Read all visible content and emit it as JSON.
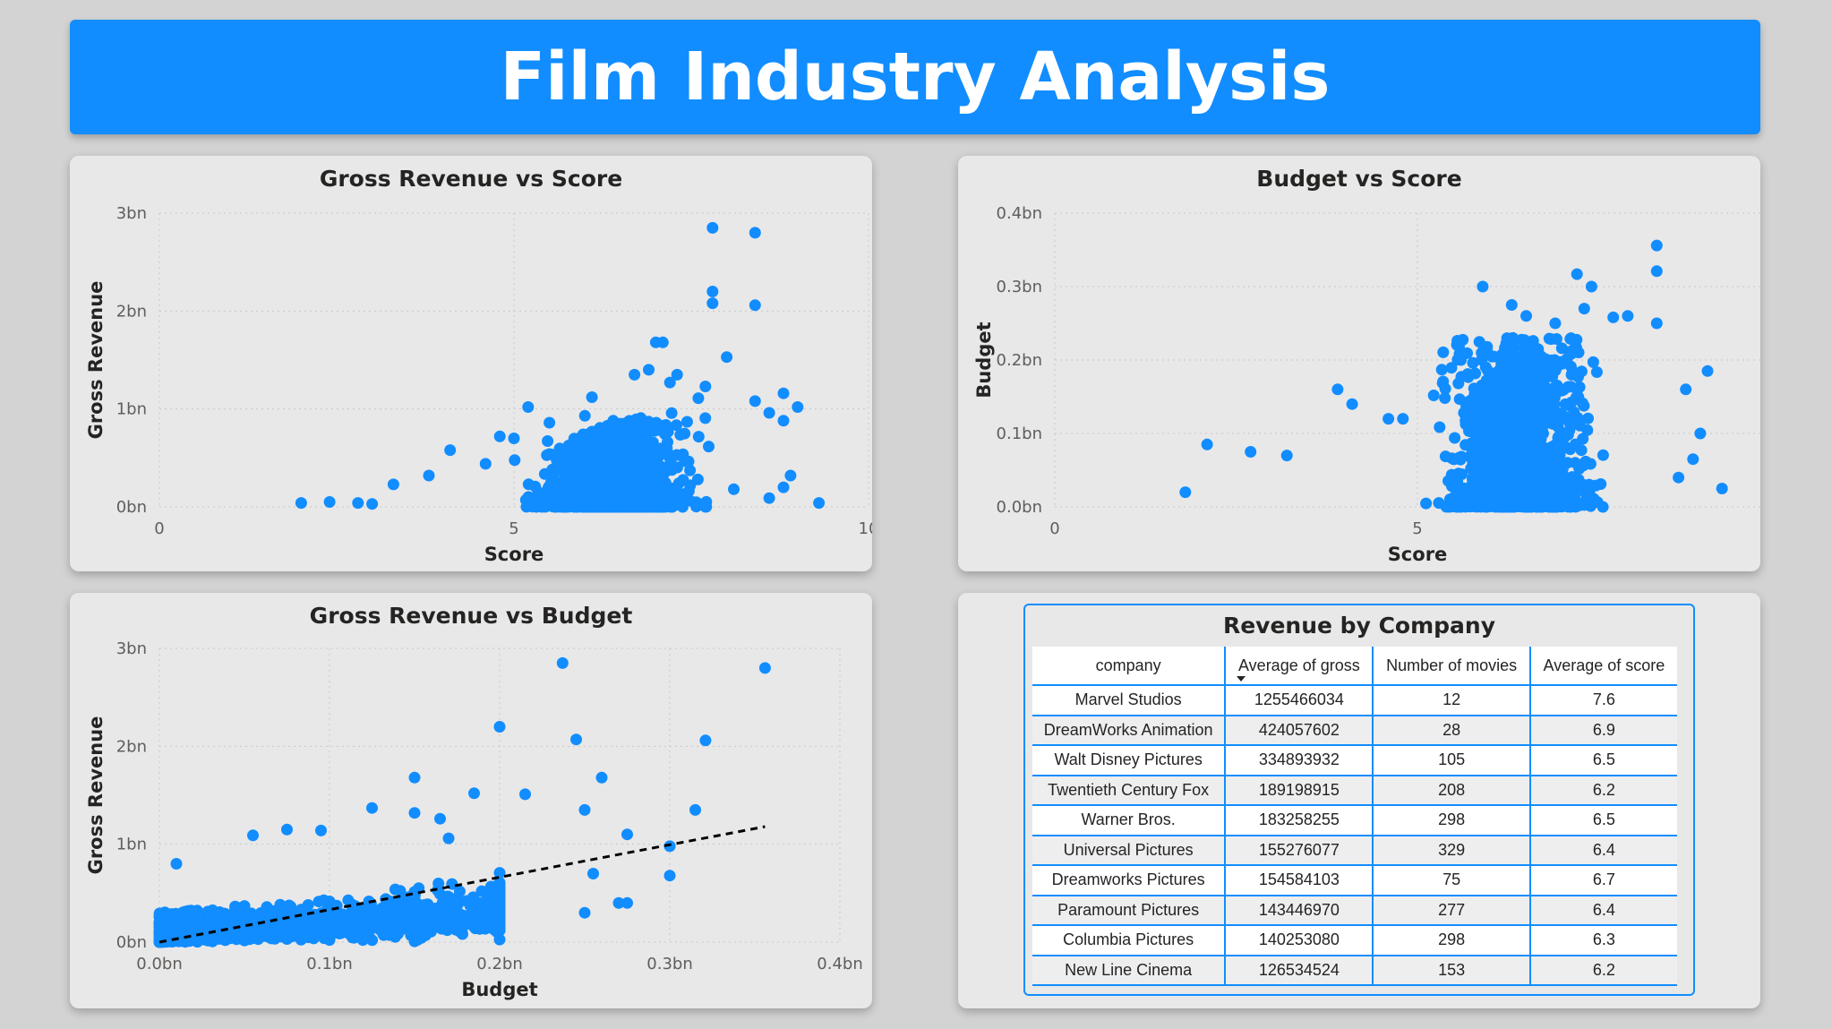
{
  "header": {
    "title": "Film Industry Analysis"
  },
  "colors": {
    "accent": "#118dff",
    "point": "#118dff",
    "trend": "#000000"
  },
  "chart_data": [
    {
      "id": "gross-vs-score",
      "type": "scatter",
      "title": "Gross Revenue vs Score",
      "xlabel": "Score",
      "ylabel": "Gross Revenue",
      "xlim": [
        0,
        10
      ],
      "ylim": [
        0,
        3000000000
      ],
      "x_ticks": [
        {
          "v": 0,
          "label": "0"
        },
        {
          "v": 5,
          "label": "5"
        },
        {
          "v": 10,
          "label": "10"
        }
      ],
      "y_ticks": [
        {
          "v": 0,
          "label": "0bn"
        },
        {
          "v": 1000000000,
          "label": "1bn"
        },
        {
          "v": 2000000000,
          "label": "2bn"
        },
        {
          "v": 3000000000,
          "label": "3bn"
        }
      ],
      "grid": true,
      "points": [
        [
          7.8,
          2850000000
        ],
        [
          8.4,
          2800000000
        ],
        [
          7.8,
          2200000000
        ],
        [
          7.8,
          2080000000
        ],
        [
          8.4,
          2060000000
        ],
        [
          7.0,
          1680000000
        ],
        [
          7.1,
          1680000000
        ],
        [
          8.0,
          1530000000
        ],
        [
          6.7,
          1350000000
        ],
        [
          7.3,
          1350000000
        ],
        [
          8.8,
          1160000000
        ],
        [
          9.0,
          1020000000
        ],
        [
          6.1,
          1120000000
        ],
        [
          7.7,
          1230000000
        ],
        [
          8.4,
          1080000000
        ],
        [
          7.6,
          1110000000
        ],
        [
          7.2,
          1270000000
        ],
        [
          6.9,
          1400000000
        ],
        [
          6.0,
          930000000
        ],
        [
          6.4,
          880000000
        ],
        [
          5.2,
          1020000000
        ],
        [
          5.5,
          860000000
        ],
        [
          8.8,
          880000000
        ],
        [
          8.6,
          960000000
        ],
        [
          4.1,
          580000000
        ],
        [
          4.8,
          720000000
        ],
        [
          5.0,
          700000000
        ],
        [
          5.5,
          540000000
        ],
        [
          4.6,
          440000000
        ],
        [
          3.3,
          230000000
        ],
        [
          3.8,
          320000000
        ],
        [
          8.9,
          320000000
        ],
        [
          9.3,
          40000000
        ],
        [
          8.6,
          90000000
        ],
        [
          2.0,
          40000000
        ],
        [
          2.4,
          50000000
        ],
        [
          2.8,
          40000000
        ],
        [
          3.0,
          30000000
        ],
        [
          8.1,
          180000000
        ],
        [
          8.8,
          200000000
        ]
      ],
      "cloud": true
    },
    {
      "id": "budget-vs-score",
      "type": "scatter",
      "title": "Budget vs Score",
      "xlabel": "Score",
      "ylabel": "Budget",
      "xlim": [
        0,
        10
      ],
      "ylim": [
        0,
        400000000
      ],
      "x_ticks": [
        {
          "v": 0,
          "label": "0"
        },
        {
          "v": 5,
          "label": "5"
        },
        {
          "v": 10,
          "label": "10"
        }
      ],
      "y_ticks": [
        {
          "v": 0,
          "label": "0.0bn"
        },
        {
          "v": 100000000,
          "label": "0.1bn"
        },
        {
          "v": 200000000,
          "label": "0.2bn"
        },
        {
          "v": 300000000,
          "label": "0.3bn"
        },
        {
          "v": 400000000,
          "label": "0.4bn"
        }
      ],
      "grid": true,
      "points": [
        [
          8.3,
          356000000
        ],
        [
          8.3,
          321000000
        ],
        [
          7.2,
          317000000
        ],
        [
          5.9,
          300000000
        ],
        [
          7.4,
          300000000
        ],
        [
          6.3,
          275000000
        ],
        [
          7.3,
          270000000
        ],
        [
          7.9,
          260000000
        ],
        [
          7.7,
          258000000
        ],
        [
          8.3,
          250000000
        ],
        [
          6.9,
          250000000
        ],
        [
          5.6,
          200000000
        ],
        [
          3.9,
          160000000
        ],
        [
          4.1,
          140000000
        ],
        [
          4.8,
          120000000
        ],
        [
          2.7,
          75000000
        ],
        [
          2.1,
          85000000
        ],
        [
          3.2,
          70000000
        ],
        [
          9.0,
          185000000
        ],
        [
          8.7,
          160000000
        ],
        [
          8.9,
          100000000
        ],
        [
          9.2,
          25000000
        ],
        [
          1.8,
          20000000
        ],
        [
          8.6,
          40000000
        ],
        [
          8.8,
          65000000
        ],
        [
          5.8,
          150000000
        ],
        [
          6.5,
          260000000
        ],
        [
          4.6,
          120000000
        ]
      ],
      "cloud": true
    },
    {
      "id": "gross-vs-budget",
      "type": "scatter",
      "title": "Gross Revenue vs Budget",
      "xlabel": "Budget",
      "ylabel": "Gross Revenue",
      "xlim": [
        0,
        400000000
      ],
      "ylim": [
        0,
        3000000000
      ],
      "x_ticks": [
        {
          "v": 0,
          "label": "0.0bn"
        },
        {
          "v": 100000000,
          "label": "0.1bn"
        },
        {
          "v": 200000000,
          "label": "0.2bn"
        },
        {
          "v": 300000000,
          "label": "0.3bn"
        },
        {
          "v": 400000000,
          "label": "0.4bn"
        }
      ],
      "y_ticks": [
        {
          "v": 0,
          "label": "0bn"
        },
        {
          "v": 1000000000,
          "label": "1bn"
        },
        {
          "v": 2000000000,
          "label": "2bn"
        },
        {
          "v": 3000000000,
          "label": "3bn"
        }
      ],
      "grid": true,
      "trend": [
        [
          0,
          0
        ],
        [
          356000000,
          1180000000
        ]
      ],
      "points": [
        [
          237000000,
          2850000000
        ],
        [
          356000000,
          2800000000
        ],
        [
          200000000,
          2200000000
        ],
        [
          245000000,
          2070000000
        ],
        [
          321000000,
          2060000000
        ],
        [
          150000000,
          1680000000
        ],
        [
          260000000,
          1680000000
        ],
        [
          150000000,
          1320000000
        ],
        [
          215000000,
          1510000000
        ],
        [
          250000000,
          1350000000
        ],
        [
          315000000,
          1350000000
        ],
        [
          185000000,
          1520000000
        ],
        [
          125000000,
          1370000000
        ],
        [
          300000000,
          980000000
        ],
        [
          275000000,
          400000000
        ],
        [
          300000000,
          680000000
        ],
        [
          255000000,
          700000000
        ],
        [
          270000000,
          400000000
        ],
        [
          250000000,
          300000000
        ],
        [
          275000000,
          1100000000
        ],
        [
          10000000,
          800000000
        ],
        [
          55000000,
          1090000000
        ],
        [
          75000000,
          1150000000
        ],
        [
          95000000,
          1140000000
        ],
        [
          165000000,
          1260000000
        ],
        [
          170000000,
          1060000000
        ]
      ],
      "cloud": true
    }
  ],
  "table": {
    "title": "Revenue by Company",
    "columns": [
      "company",
      "Average of gross",
      "Number of movies",
      "Average of score"
    ],
    "rows": [
      [
        "Marvel Studios",
        "1255466034",
        "12",
        "7.6"
      ],
      [
        "DreamWorks Animation",
        "424057602",
        "28",
        "6.9"
      ],
      [
        "Walt Disney Pictures",
        "334893932",
        "105",
        "6.5"
      ],
      [
        "Twentieth Century Fox",
        "189198915",
        "208",
        "6.2"
      ],
      [
        "Warner Bros.",
        "183258255",
        "298",
        "6.5"
      ],
      [
        "Universal Pictures",
        "155276077",
        "329",
        "6.4"
      ],
      [
        "Dreamworks Pictures",
        "154584103",
        "75",
        "6.7"
      ],
      [
        "Paramount Pictures",
        "143446970",
        "277",
        "6.4"
      ],
      [
        "Columbia Pictures",
        "140253080",
        "298",
        "6.3"
      ],
      [
        "New Line Cinema",
        "126534524",
        "153",
        "6.2"
      ]
    ]
  }
}
